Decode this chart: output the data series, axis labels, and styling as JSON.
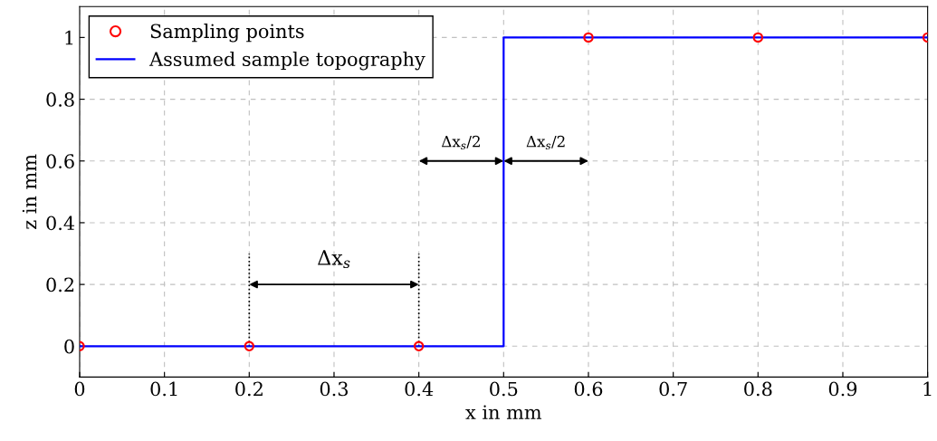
{
  "chart_data": {
    "type": "scatter",
    "xlabel": "x in mm",
    "ylabel": "z in mm",
    "series": [
      {
        "name": "Sampling points",
        "color": "#ff0000",
        "marker": "circle",
        "x": [
          0,
          0.2,
          0.4,
          0.6,
          0.8,
          1.0
        ],
        "values": [
          0,
          0,
          0,
          1,
          1,
          1
        ]
      },
      {
        "name": "Assumed sample topography",
        "type": "line",
        "color": "#0000ff",
        "marker": "none",
        "line_style": "solid",
        "x": [
          0,
          0.5,
          0.5,
          1.0
        ],
        "values": [
          0,
          0,
          1,
          1
        ]
      }
    ],
    "annotations": [
      "Δx$_{s}$",
      "Δx$_{s}$/2",
      "Δx$_{s}$/2"
    ],
    "xlim": [
      0,
      1
    ],
    "ylim": [
      -0.1,
      1.1
    ],
    "xticks": [
      0,
      0.1,
      0.2,
      0.3,
      0.4,
      0.5,
      0.6,
      0.7,
      0.8,
      0.9,
      1
    ],
    "yticks": [
      0,
      0.2,
      0.4,
      0.6,
      0.8,
      1
    ],
    "grid": true,
    "legend": "top left"
  }
}
